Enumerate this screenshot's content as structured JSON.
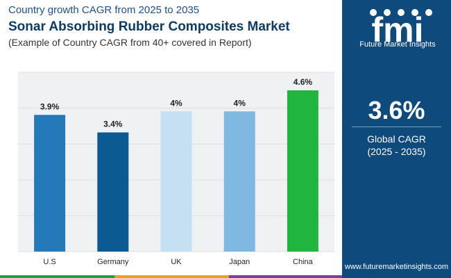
{
  "header": {
    "subtitle_top": "Country growth CAGR from 2025 to 2035",
    "title": "Sonar Absorbing Rubber Composites Market",
    "description": "(Example of Country CAGR from 40+ covered in Report)"
  },
  "sidebar": {
    "logo_text": "Future Market Insights",
    "global_value": "3.6%",
    "global_label": "Global CAGR",
    "global_period": "(2025 - 2035)",
    "website": "www.futuremarketinsights.com"
  },
  "colors": {
    "sidebar_bg": "#0e4a7c",
    "bottom_bar": [
      "#1aa33b",
      "#e8a317",
      "#7a3fa0",
      "#0e4a7c"
    ]
  },
  "chart_data": {
    "type": "bar",
    "categories": [
      "U.S",
      "Germany",
      "UK",
      "Japan",
      "China"
    ],
    "values": [
      3.9,
      3.4,
      4.0,
      4.0,
      4.6
    ],
    "value_labels": [
      "3.9%",
      "3.4%",
      "4%",
      "4%",
      "4.6%"
    ],
    "bar_colors": [
      "#2479b8",
      "#0b5a91",
      "#c4e0f2",
      "#7fb8e1",
      "#1fb53f"
    ],
    "ylim": [
      0,
      4.6
    ],
    "grid": true,
    "legend": "none"
  }
}
